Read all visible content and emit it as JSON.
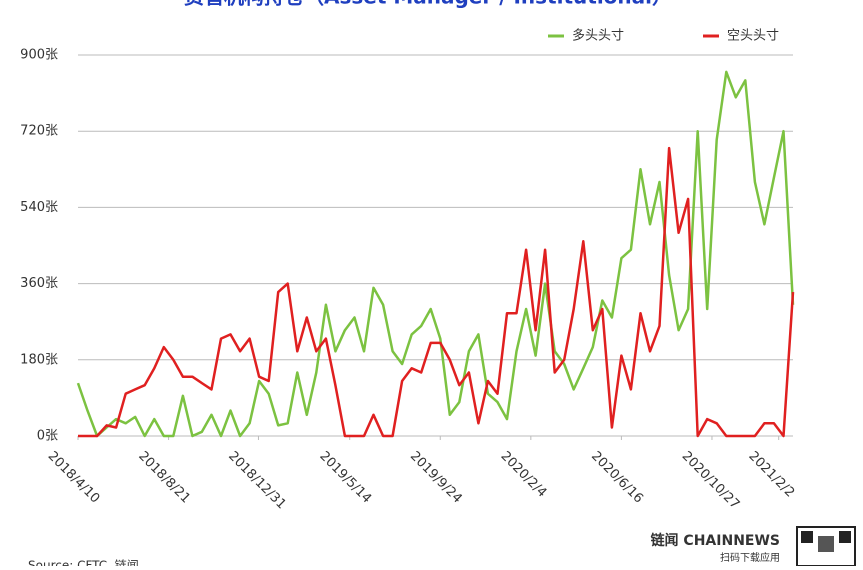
{
  "chart_data": {
    "type": "line",
    "title": "资管机构持仓（Asset Manager / Institutional）",
    "source": "Source: CFTC, 链闻",
    "brand": "链闻 CHAINNEWS",
    "brand_sub": "扫码下载应用",
    "x": [
      "2018/4/10",
      "2018/4/24",
      "2018/5/8",
      "2018/5/22",
      "2018/6/5",
      "2018/6/19",
      "2018/7/3",
      "2018/7/17",
      "2018/7/31",
      "2018/8/14",
      "2018/8/28",
      "2018/9/11",
      "2018/9/25",
      "2018/10/9",
      "2018/10/23",
      "2018/11/6",
      "2018/11/20",
      "2018/12/4",
      "2018/12/18",
      "2019/1/1",
      "2019/1/15",
      "2019/1/29",
      "2019/2/12",
      "2019/2/26",
      "2019/3/12",
      "2019/3/26",
      "2019/4/9",
      "2019/4/23",
      "2019/5/7",
      "2019/5/21",
      "2019/6/4",
      "2019/6/18",
      "2019/7/2",
      "2019/7/16",
      "2019/7/30",
      "2019/8/13",
      "2019/8/27",
      "2019/9/10",
      "2019/9/24",
      "2019/10/8",
      "2019/10/22",
      "2019/11/5",
      "2019/11/19",
      "2019/12/3",
      "2019/12/17",
      "2019/12/31",
      "2020/1/14",
      "2020/1/28",
      "2020/2/11",
      "2020/2/25",
      "2020/3/10",
      "2020/3/24",
      "2020/4/7",
      "2020/4/21",
      "2020/5/5",
      "2020/5/19",
      "2020/6/2",
      "2020/6/16",
      "2020/6/30",
      "2020/7/14",
      "2020/7/28",
      "2020/8/11",
      "2020/8/25",
      "2020/9/8",
      "2020/9/22",
      "2020/10/6",
      "2020/10/20",
      "2020/11/3",
      "2020/11/17",
      "2020/12/1",
      "2020/12/15",
      "2020/12/29",
      "2021/1/12",
      "2021/1/26",
      "2021/2/9",
      "2021/2/23"
    ],
    "series": [
      {
        "name": "多头头寸",
        "color": "#7cc241",
        "values": [
          125,
          60,
          0,
          20,
          40,
          30,
          45,
          0,
          40,
          0,
          0,
          95,
          0,
          10,
          50,
          0,
          60,
          0,
          30,
          130,
          100,
          25,
          30,
          150,
          50,
          150,
          310,
          200,
          250,
          280,
          200,
          350,
          310,
          200,
          170,
          240,
          260,
          300,
          230,
          50,
          80,
          200,
          240,
          100,
          80,
          40,
          200,
          300,
          190,
          360,
          200,
          170,
          110,
          160,
          210,
          320,
          280,
          420,
          440,
          630,
          500,
          600,
          380,
          250,
          300,
          720,
          300,
          700,
          860,
          800,
          840,
          600,
          500,
          610,
          720,
          310
        ]
      },
      {
        "name": "空头头寸",
        "color": "#e02020",
        "values": [
          0,
          0,
          0,
          25,
          20,
          100,
          110,
          120,
          160,
          210,
          180,
          140,
          140,
          125,
          110,
          230,
          240,
          200,
          230,
          140,
          130,
          340,
          360,
          200,
          280,
          200,
          230,
          120,
          0,
          0,
          0,
          50,
          0,
          0,
          130,
          160,
          150,
          220,
          220,
          180,
          120,
          150,
          30,
          130,
          100,
          290,
          290,
          440,
          250,
          440,
          150,
          180,
          300,
          460,
          250,
          300,
          20,
          190,
          110,
          290,
          200,
          260,
          680,
          480,
          560,
          0,
          40,
          30,
          0,
          0,
          0,
          0,
          30,
          30,
          0,
          340
        ]
      }
    ],
    "xlim": [
      "2018/4/10",
      "2021/2/23"
    ],
    "xticks": [
      "2018/4/10",
      "2018/8/21",
      "2018/12/31",
      "2019/5/14",
      "2019/9/24",
      "2020/2/4",
      "2020/6/16",
      "2020/10/27",
      "2021/2/2"
    ],
    "ylim": [
      0,
      900
    ],
    "yticks": [
      {
        "value": 0,
        "label": "0张"
      },
      {
        "value": 180,
        "label": "180张"
      },
      {
        "value": 360,
        "label": "360张"
      },
      {
        "value": 540,
        "label": "540张"
      },
      {
        "value": 720,
        "label": "720张"
      },
      {
        "value": 900,
        "label": "900张"
      }
    ],
    "grid": true,
    "legend": "top-right"
  }
}
